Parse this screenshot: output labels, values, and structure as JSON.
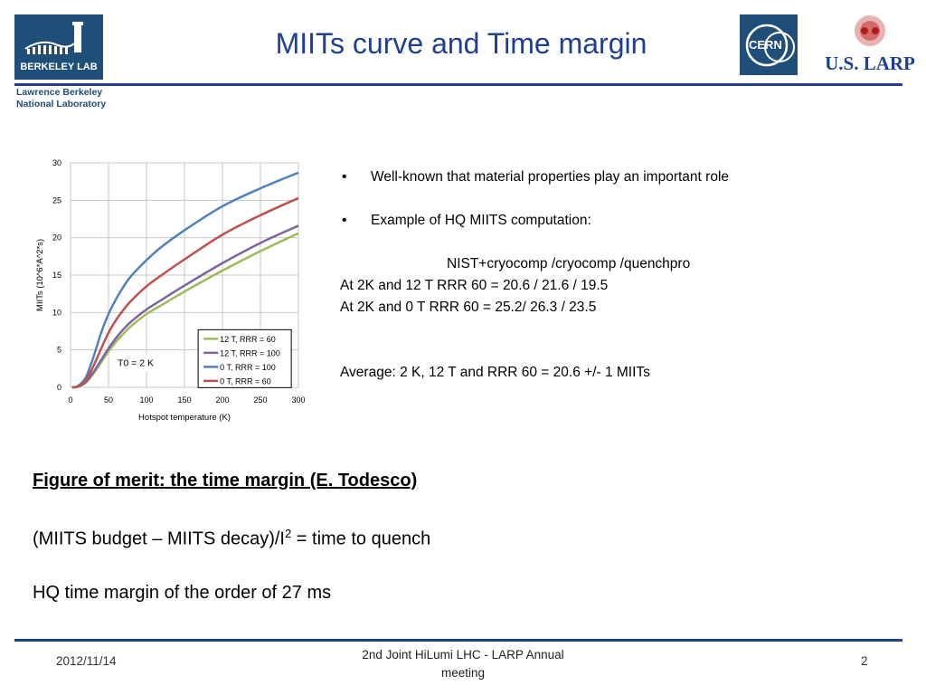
{
  "header": {
    "title": "MIITs curve and Time margin",
    "berkeley_logo_text": "BERKELEY LAB",
    "lab_name_line1": "Lawrence Berkeley",
    "lab_name_line2": "National Laboratory",
    "cern_logo_text": "CERN",
    "larp_logo_text": "U.S. LARP"
  },
  "chart_data": {
    "type": "line",
    "ylabel": "MIITs (10^6*A^2*s)",
    "xlabel": "Hotspot temperature (K)",
    "xlim": [
      0,
      300
    ],
    "ylim": [
      0,
      30
    ],
    "x_ticks": [
      0,
      50,
      100,
      150,
      200,
      250,
      300
    ],
    "y_ticks": [
      0,
      5,
      10,
      15,
      20,
      25,
      30
    ],
    "grid": true,
    "legend_position": "bottom-right",
    "annotation": "T0 = 2 K",
    "series": [
      {
        "name": "12 T, RRR = 60",
        "color": "#9bbb59",
        "x": [
          2,
          10,
          20,
          30,
          40,
          50,
          60,
          70,
          80,
          100,
          120,
          150,
          200,
          250,
          300
        ],
        "y": [
          0,
          0.1,
          0.6,
          1.8,
          3.3,
          4.8,
          6.1,
          7.2,
          8.2,
          9.8,
          11.0,
          12.8,
          15.6,
          18.2,
          20.6
        ]
      },
      {
        "name": "12 T, RRR = 100",
        "color": "#8064a2",
        "x": [
          2,
          10,
          20,
          30,
          40,
          50,
          60,
          70,
          80,
          100,
          120,
          150,
          200,
          250,
          300
        ],
        "y": [
          0,
          0.1,
          0.7,
          2.0,
          3.6,
          5.2,
          6.6,
          7.8,
          8.8,
          10.4,
          11.7,
          13.6,
          16.6,
          19.3,
          21.6
        ]
      },
      {
        "name": "0 T, RRR = 100",
        "color": "#4f81bd",
        "x": [
          2,
          10,
          20,
          30,
          40,
          50,
          60,
          70,
          80,
          100,
          120,
          150,
          200,
          250,
          300
        ],
        "y": [
          0,
          0.2,
          1.3,
          4.0,
          7.2,
          9.8,
          11.8,
          13.5,
          14.9,
          17.0,
          18.8,
          21.0,
          24.2,
          26.6,
          28.7
        ]
      },
      {
        "name": "0 T, RRR = 60",
        "color": "#c0504d",
        "x": [
          2,
          10,
          20,
          30,
          40,
          50,
          60,
          70,
          80,
          100,
          120,
          150,
          200,
          250,
          300
        ],
        "y": [
          0,
          0.1,
          0.9,
          2.8,
          5.1,
          7.3,
          9.0,
          10.4,
          11.6,
          13.5,
          15.0,
          17.1,
          20.4,
          23.0,
          25.3
        ]
      }
    ]
  },
  "bullets": [
    "Well-known that material properties play an important role",
    "Example of HQ MIITS computation:"
  ],
  "computation": {
    "sources": "NIST+cryocomp /cryocomp /quenchpro",
    "line_12t": "At 2K and 12 T RRR 60 = 20.6  / 21.6  /  19.5",
    "line_0t": "At 2K and 0 T   RRR 60 = 25.2/   26.3  /  23.5",
    "average": "Average: 2 K, 12 T and RRR 60 = 20.6 +/- 1 MIITs"
  },
  "body": {
    "figure_of_merit": "Figure of merit: the time margin (E. Todesco)",
    "formula_main": "(MIITS budget – MIITS decay)/I",
    "formula_sup": "2",
    "formula_tail": " = time to quench",
    "time_margin": "HQ time margin of the order of 27 ms"
  },
  "footer": {
    "date": "2012/11/14",
    "event_line1": "2nd Joint HiLumi LHC - LARP Annual",
    "event_line2": "meeting",
    "page": "2"
  }
}
